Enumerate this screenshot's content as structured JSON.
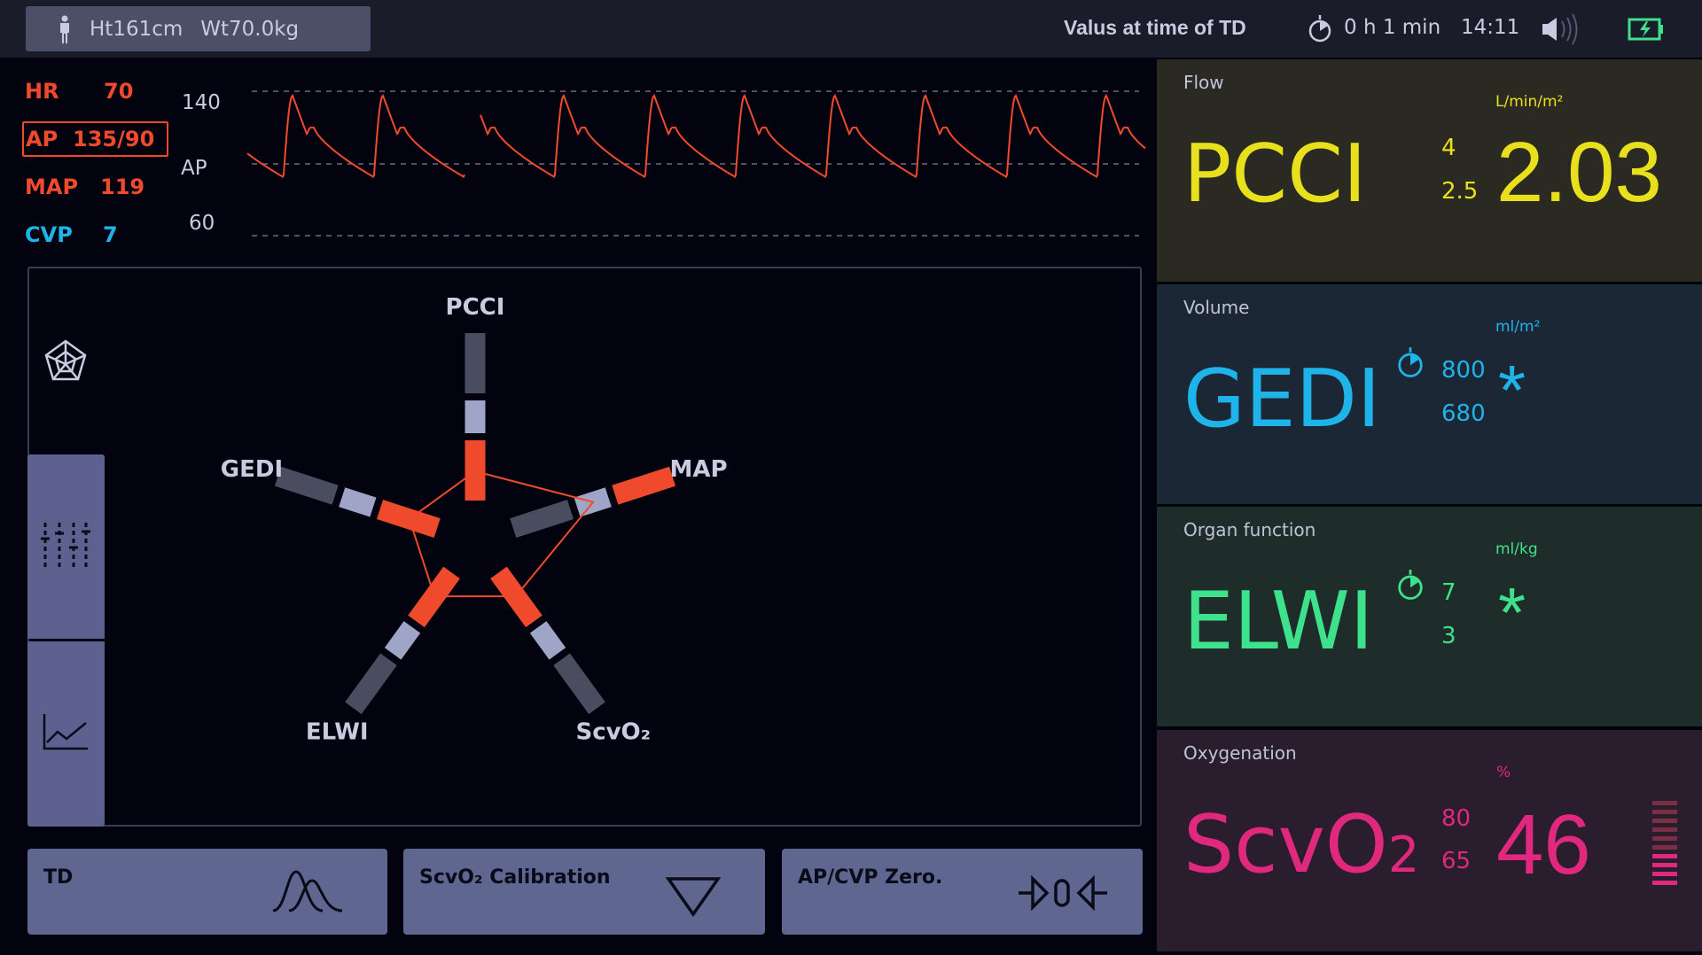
{
  "topbar": {
    "height": "Ht161cm",
    "weight": "Wt70.0kg",
    "title": "Valus at time of TD",
    "elapsed": "0 h 1 min",
    "time": "14:11",
    "icons": [
      "person-icon",
      "timer-icon",
      "speaker-icon",
      "battery-charging-icon"
    ]
  },
  "vitals": {
    "hr_label": "HR",
    "hr_value": "70",
    "ap_label": "AP",
    "ap_value": "135/90",
    "map_label": "MAP",
    "map_value": "119",
    "cvp_label": "CVP",
    "cvp_value": "7"
  },
  "waveform": {
    "label": "AP",
    "scale_high": "140",
    "scale_low": "60",
    "color": "#f04a2c"
  },
  "spider": {
    "axes": [
      {
        "label": "PCCI",
        "indicator": "inner"
      },
      {
        "label": "MAP",
        "indicator": "outer"
      },
      {
        "label": "ScvO₂",
        "indicator": "inner"
      },
      {
        "label": "ELWI",
        "indicator": "inner"
      },
      {
        "label": "GEDI",
        "indicator": "inner"
      }
    ],
    "tabs": [
      "spider-icon",
      "sliders-icon",
      "trend-icon"
    ],
    "active_tab": 0
  },
  "buttons": [
    {
      "label": "TD",
      "icon": "thermodilution-curve-icon"
    },
    {
      "label": "ScvO₂ Calibration",
      "icon": "triangle-down-icon"
    },
    {
      "label": "AP/CVP Zero.",
      "icon": "zero-valve-icon"
    }
  ],
  "panels": {
    "flow": {
      "title": "Flow",
      "name": "PCCI",
      "high": "4",
      "low": "2.5",
      "unit": "L/min/m²",
      "value": "2.03",
      "color": "#e8e01c",
      "bg": "#2b2a22"
    },
    "volume": {
      "title": "Volume",
      "name": "GEDI",
      "high": "800",
      "low": "680",
      "unit": "ml/m²",
      "value": "*",
      "color": "#1eb4ea",
      "bg": "#1c2736"
    },
    "organ": {
      "title": "Organ function",
      "name": "ELWI",
      "high": "7",
      "low": "3",
      "unit": "ml/kg",
      "value": "*",
      "color": "#3ee28c",
      "bg": "#1f2d2a"
    },
    "oxygen": {
      "title": "Oxygenation",
      "name": "ScvO",
      "name_sub": "2",
      "high": "80",
      "low": "65",
      "unit": "%",
      "value": "46",
      "color": "#e0287f",
      "bg": "#2a1d2e",
      "bar_level": 0.4
    }
  }
}
